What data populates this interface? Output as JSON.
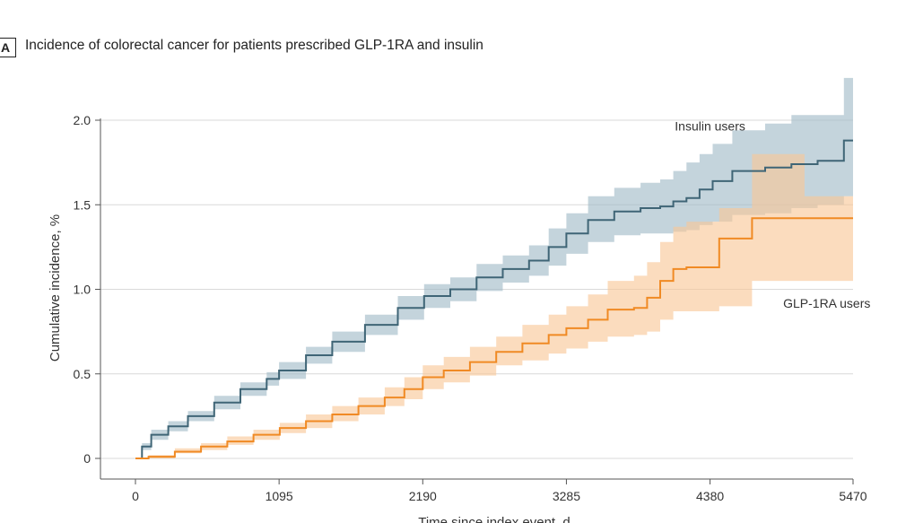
{
  "chart_data": {
    "type": "line",
    "panel_label": "A",
    "title": "Incidence of colorectal cancer for patients prescribed GLP-1RA and insulin",
    "xlabel": "Time since index event, d",
    "ylabel": "Cumulative incidence, %",
    "xlim": [
      0,
      5470
    ],
    "ylim": [
      0,
      2.0
    ],
    "x_ticks": [
      0,
      1095,
      2190,
      3285,
      4380,
      5470
    ],
    "y_ticks": [
      0,
      0.5,
      1.0,
      1.5,
      2.0
    ],
    "y_tick_labels": [
      "0",
      "0.5",
      "1.0",
      "1.5",
      "2.0"
    ],
    "grid": "horizontal",
    "series": [
      {
        "name": "Insulin users",
        "color": "#3f6576",
        "band_color": "#9fb9c6",
        "x": [
          0,
          50,
          120,
          250,
          400,
          600,
          800,
          1000,
          1095,
          1300,
          1500,
          1750,
          2000,
          2200,
          2400,
          2600,
          2800,
          3000,
          3150,
          3285,
          3450,
          3650,
          3850,
          4000,
          4100,
          4200,
          4300,
          4400,
          4550,
          4800,
          5000,
          5200,
          5400,
          5470
        ],
        "y": [
          0,
          0.07,
          0.14,
          0.19,
          0.25,
          0.33,
          0.41,
          0.47,
          0.52,
          0.61,
          0.69,
          0.79,
          0.89,
          0.96,
          1.0,
          1.07,
          1.12,
          1.17,
          1.25,
          1.33,
          1.41,
          1.46,
          1.48,
          1.49,
          1.52,
          1.54,
          1.59,
          1.64,
          1.7,
          1.72,
          1.74,
          1.76,
          1.88,
          1.88
        ],
        "lower": [
          0,
          0.05,
          0.11,
          0.16,
          0.22,
          0.29,
          0.37,
          0.43,
          0.47,
          0.56,
          0.63,
          0.73,
          0.82,
          0.89,
          0.93,
          0.99,
          1.04,
          1.08,
          1.14,
          1.21,
          1.28,
          1.32,
          1.33,
          1.33,
          1.34,
          1.35,
          1.38,
          1.4,
          1.44,
          1.45,
          1.48,
          1.5,
          1.55,
          1.55
        ],
        "upper": [
          0,
          0.09,
          0.17,
          0.22,
          0.28,
          0.37,
          0.45,
          0.51,
          0.57,
          0.66,
          0.75,
          0.85,
          0.96,
          1.03,
          1.07,
          1.15,
          1.2,
          1.26,
          1.36,
          1.45,
          1.55,
          1.6,
          1.63,
          1.65,
          1.7,
          1.75,
          1.8,
          1.86,
          1.94,
          1.98,
          2.03,
          2.03,
          2.25,
          2.25
        ]
      },
      {
        "name": "GLP-1RA users",
        "color": "#f08a24",
        "band_color": "#f9c796",
        "x": [
          0,
          100,
          300,
          500,
          700,
          900,
          1100,
          1300,
          1500,
          1700,
          1900,
          2050,
          2190,
          2350,
          2550,
          2750,
          2950,
          3150,
          3285,
          3450,
          3600,
          3800,
          3900,
          4000,
          4100,
          4200,
          4400,
          4450,
          4650,
          4700,
          4900,
          5100,
          5300,
          5470
        ],
        "y": [
          0,
          0.01,
          0.04,
          0.07,
          0.1,
          0.14,
          0.18,
          0.22,
          0.26,
          0.31,
          0.36,
          0.41,
          0.48,
          0.52,
          0.57,
          0.63,
          0.68,
          0.73,
          0.77,
          0.82,
          0.88,
          0.89,
          0.95,
          1.05,
          1.12,
          1.13,
          1.13,
          1.3,
          1.3,
          1.42,
          1.42,
          1.42,
          1.42,
          1.42
        ],
        "lower": [
          0,
          0.0,
          0.03,
          0.05,
          0.08,
          0.11,
          0.15,
          0.18,
          0.22,
          0.26,
          0.31,
          0.35,
          0.41,
          0.45,
          0.49,
          0.55,
          0.58,
          0.62,
          0.65,
          0.69,
          0.72,
          0.73,
          0.75,
          0.82,
          0.87,
          0.87,
          0.87,
          0.9,
          0.9,
          1.05,
          1.05,
          1.05,
          1.05,
          1.05
        ],
        "upper": [
          0,
          0.02,
          0.06,
          0.09,
          0.13,
          0.17,
          0.21,
          0.26,
          0.31,
          0.36,
          0.42,
          0.48,
          0.55,
          0.6,
          0.66,
          0.72,
          0.79,
          0.85,
          0.9,
          0.97,
          1.05,
          1.08,
          1.16,
          1.28,
          1.37,
          1.4,
          1.4,
          1.48,
          1.48,
          1.8,
          1.8,
          1.55,
          1.55,
          1.55
        ]
      }
    ],
    "annotations": [
      {
        "text": "Insulin users",
        "x": 4380,
        "y": 1.94
      },
      {
        "text": "GLP-1RA users",
        "x": 5270,
        "y": 0.89
      }
    ]
  }
}
